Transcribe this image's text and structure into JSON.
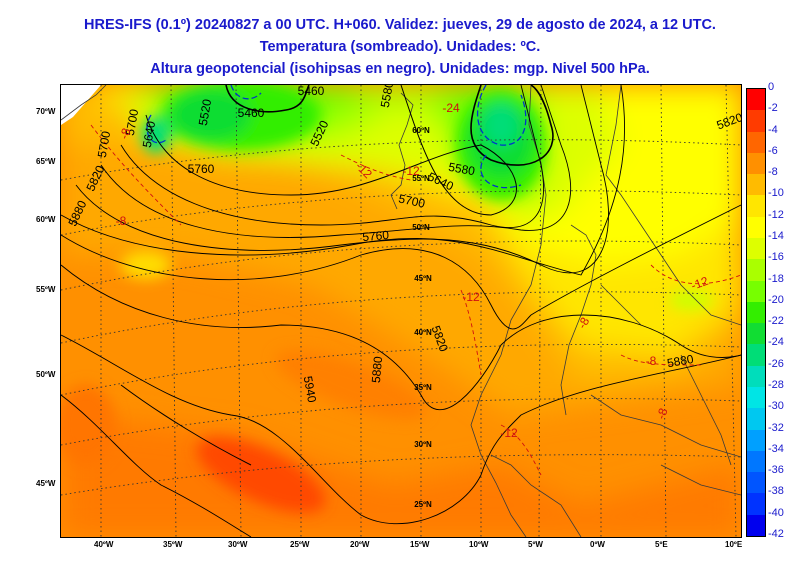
{
  "header": {
    "line1": "HRES-IFS (0.1º) 20240827 a 00 UTC. H+060. Validez: jueves, 29 de agosto de 2024, a 12 UTC.",
    "line2": "Temperatura (sombreado). Unidades: ºC.",
    "line3": "Altura geopotencial (isohipsas en negro). Unidades: mgp. Nivel 500 hPa."
  },
  "left_lat_labels": [
    "70ºW",
    "65ºW",
    "60ºW",
    "55ºW",
    "50ºW",
    "45ºW"
  ],
  "bottom_lon_labels": [
    "40ºW",
    "35ºW",
    "30ºW",
    "25ºW",
    "20ºW",
    "15ºW",
    "10ºW",
    "5ºW",
    "0ºW",
    "5ºE",
    "10ºE"
  ],
  "interior_lat_labels": [
    "60ºN",
    "55ºN",
    "50ºN",
    "45ºN",
    "40ºN",
    "35ºN",
    "30ºN",
    "25ºN"
  ],
  "isohypse_labels": [
    "5460",
    "5460",
    "5520",
    "5520",
    "5580",
    "5580",
    "5640",
    "5640",
    "5700",
    "5700",
    "5700",
    "5760",
    "5760",
    "5820",
    "5820",
    "5820",
    "5880",
    "5880",
    "5880",
    "5940"
  ],
  "temperature_labels": [
    "-24",
    "-12",
    "-12",
    "-12",
    "-12",
    "-8",
    "-8",
    "-8",
    "-8",
    "-8",
    "-12"
  ],
  "colorbar": {
    "labels": [
      "0",
      "-2",
      "-4",
      "-6",
      "-8",
      "-10",
      "-12",
      "-14",
      "-16",
      "-18",
      "-20",
      "-22",
      "-24",
      "-26",
      "-28",
      "-30",
      "-32",
      "-34",
      "-36",
      "-38",
      "-40",
      "-42"
    ],
    "colors": [
      "#ff0000",
      "#ff3b00",
      "#ff6600",
      "#ff9000",
      "#ffbb00",
      "#ffe600",
      "#ffff00",
      "#ddff00",
      "#aaff00",
      "#77ff00",
      "#33ee00",
      "#11dd33",
      "#00dd77",
      "#00ddbb",
      "#00e5e5",
      "#00c8f0",
      "#00a0ff",
      "#0077ff",
      "#0055ff",
      "#0033ff",
      "#0000ee"
    ]
  }
}
